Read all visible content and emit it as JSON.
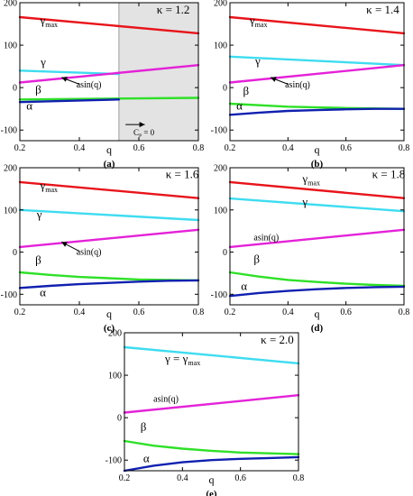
{
  "chart_data": [
    {
      "panel_label": "(a)",
      "kappa_label": "κ = 1.2",
      "type": "line",
      "xlabel": "q",
      "xlim": [
        0.2,
        0.8
      ],
      "ylim": [
        -125,
        200
      ],
      "x_ticks": [
        "0.2",
        "0.4",
        "0.6",
        "0.8"
      ],
      "y_ticks": [
        "-100",
        "0",
        "100",
        "200"
      ],
      "shaded_region": {
        "x_start": 0.533,
        "x_end": 0.8,
        "annotation": "C_P = 0"
      },
      "series": [
        {
          "name": "γmax",
          "color": "#e8141b",
          "x": [
            0.2,
            0.8
          ],
          "y": [
            166,
            128
          ]
        },
        {
          "name": "γ",
          "color": "#3fdcf0",
          "x": [
            0.2,
            0.533
          ],
          "y": [
            40,
            32
          ]
        },
        {
          "name": "asin(q)",
          "color": "#e422d8",
          "x": [
            0.2,
            0.8
          ],
          "y": [
            12,
            53
          ]
        },
        {
          "name": "β",
          "color": "#2fe028",
          "x": [
            0.2,
            0.8
          ],
          "y": [
            -28,
            -24
          ]
        },
        {
          "name": "α",
          "color": "#1020b0",
          "x": [
            0.2,
            0.533
          ],
          "y": [
            -34,
            -28
          ]
        }
      ],
      "labels": [
        {
          "text": "γmax",
          "x": 0.268,
          "y": 149
        },
        {
          "text": "γ",
          "x": 0.27,
          "y": 51
        },
        {
          "text": "asin(q)",
          "x": 0.39,
          "y": 0
        },
        {
          "text": "β",
          "x": 0.252,
          "y": -13
        },
        {
          "text": "α",
          "x": 0.222,
          "y": -52
        },
        {
          "text": "κ = 1.2",
          "x": 0.66,
          "y": 175
        },
        {
          "text": "C_P = 0",
          "x": 0.582,
          "y": -112
        }
      ],
      "arrows": [
        {
          "x1": 0.4,
          "y1": 8,
          "x2": 0.34,
          "y2": 24
        },
        {
          "x1": 0.555,
          "y1": -87,
          "x2": 0.62,
          "y2": -87
        }
      ]
    },
    {
      "panel_label": "(b)",
      "kappa_label": "κ = 1.4",
      "type": "line",
      "xlabel": "q",
      "xlim": [
        0.2,
        0.8
      ],
      "ylim": [
        -125,
        200
      ],
      "x_ticks": [
        "0.2",
        "0.4",
        "0.6",
        "0.8"
      ],
      "y_ticks": [
        "-100",
        "0",
        "100",
        "200"
      ],
      "series": [
        {
          "name": "γmax",
          "color": "#e8141b",
          "x": [
            0.2,
            0.8
          ],
          "y": [
            166,
            128
          ]
        },
        {
          "name": "γ",
          "color": "#3fdcf0",
          "x": [
            0.2,
            0.8
          ],
          "y": [
            73,
            53
          ]
        },
        {
          "name": "asin(q)",
          "color": "#e422d8",
          "x": [
            0.2,
            0.8
          ],
          "y": [
            12,
            53
          ]
        },
        {
          "name": "β",
          "color": "#2fe028",
          "x": [
            0.2,
            0.4,
            0.6,
            0.8
          ],
          "y": [
            -38,
            -45,
            -48,
            -50
          ]
        },
        {
          "name": "α",
          "color": "#1020b0",
          "x": [
            0.2,
            0.3,
            0.4,
            0.5,
            0.6,
            0.7,
            0.8
          ],
          "y": [
            -64,
            -59,
            -55,
            -53,
            -51,
            -50,
            -50
          ]
        }
      ],
      "labels": [
        {
          "text": "γmax",
          "x": 0.268,
          "y": 149
        },
        {
          "text": "γ",
          "x": 0.287,
          "y": 53
        },
        {
          "text": "asin(q)",
          "x": 0.39,
          "y": 0
        },
        {
          "text": "β",
          "x": 0.245,
          "y": -17
        },
        {
          "text": "α",
          "x": 0.222,
          "y": -52
        },
        {
          "text": "κ = 1.4",
          "x": 0.67,
          "y": 175
        }
      ],
      "arrows": [
        {
          "x1": 0.4,
          "y1": 8,
          "x2": 0.34,
          "y2": 24
        }
      ]
    },
    {
      "panel_label": "(c)",
      "kappa_label": "κ = 1.6",
      "type": "line",
      "xlabel": "q",
      "xlim": [
        0.2,
        0.8
      ],
      "ylim": [
        -125,
        200
      ],
      "x_ticks": [
        "0.2",
        "0.4",
        "0.6",
        "0.8"
      ],
      "y_ticks": [
        "-100",
        "0",
        "100",
        "200"
      ],
      "series": [
        {
          "name": "γmax",
          "color": "#e8141b",
          "x": [
            0.2,
            0.8
          ],
          "y": [
            166,
            128
          ]
        },
        {
          "name": "γ",
          "color": "#3fdcf0",
          "x": [
            0.2,
            0.8
          ],
          "y": [
            100,
            76
          ]
        },
        {
          "name": "asin(q)",
          "color": "#e422d8",
          "x": [
            0.2,
            0.8
          ],
          "y": [
            12,
            53
          ]
        },
        {
          "name": "β",
          "color": "#2fe028",
          "x": [
            0.2,
            0.3,
            0.4,
            0.5,
            0.6,
            0.7,
            0.8
          ],
          "y": [
            -48,
            -54,
            -59,
            -62,
            -65,
            -66,
            -67
          ]
        },
        {
          "name": "α",
          "color": "#1020b0",
          "x": [
            0.2,
            0.3,
            0.4,
            0.5,
            0.6,
            0.7,
            0.8
          ],
          "y": [
            -85,
            -80,
            -76,
            -73,
            -70,
            -68,
            -67
          ]
        }
      ],
      "labels": [
        {
          "text": "γmax",
          "x": 0.268,
          "y": 149
        },
        {
          "text": "γ",
          "x": 0.257,
          "y": 80
        },
        {
          "text": "asin(q)",
          "x": 0.39,
          "y": -6
        },
        {
          "text": "β",
          "x": 0.252,
          "y": -28
        },
        {
          "text": "α",
          "x": 0.267,
          "y": -105
        },
        {
          "text": "κ = 1.6",
          "x": 0.69,
          "y": 175
        }
      ],
      "arrows": [
        {
          "x1": 0.4,
          "y1": 2,
          "x2": 0.34,
          "y2": 24
        }
      ]
    },
    {
      "panel_label": "(d)",
      "kappa_label": "κ = 1.8",
      "type": "line",
      "xlabel": "q",
      "xlim": [
        0.2,
        0.8
      ],
      "ylim": [
        -125,
        200
      ],
      "x_ticks": [
        "0.2",
        "0.4",
        "0.6",
        "0.8"
      ],
      "y_ticks": [
        "-100",
        "0",
        "100",
        "200"
      ],
      "series": [
        {
          "name": "γmax",
          "color": "#e8141b",
          "x": [
            0.2,
            0.8
          ],
          "y": [
            166,
            128
          ]
        },
        {
          "name": "γ",
          "color": "#3fdcf0",
          "x": [
            0.2,
            0.8
          ],
          "y": [
            127,
            97
          ]
        },
        {
          "name": "asin(q)",
          "color": "#e422d8",
          "x": [
            0.2,
            0.8
          ],
          "y": [
            12,
            53
          ]
        },
        {
          "name": "β",
          "color": "#2fe028",
          "x": [
            0.2,
            0.3,
            0.4,
            0.5,
            0.6,
            0.7,
            0.8
          ],
          "y": [
            -48,
            -58,
            -66,
            -71,
            -75,
            -78,
            -80
          ]
        },
        {
          "name": "α",
          "color": "#1020b0",
          "x": [
            0.2,
            0.3,
            0.4,
            0.5,
            0.6,
            0.7,
            0.8
          ],
          "y": [
            -104,
            -97,
            -92,
            -88,
            -85,
            -83,
            -82
          ]
        }
      ],
      "labels": [
        {
          "text": "γmax",
          "x": 0.45,
          "y": 165
        },
        {
          "text": "γ",
          "x": 0.45,
          "y": 110
        },
        {
          "text": "asin(q)",
          "x": 0.282,
          "y": 28
        },
        {
          "text": "β",
          "x": 0.282,
          "y": -26
        },
        {
          "text": "α",
          "x": 0.238,
          "y": -90
        },
        {
          "text": "κ = 1.8",
          "x": 0.69,
          "y": 175
        }
      ],
      "arrows": []
    },
    {
      "panel_label": "(e)",
      "kappa_label": "κ = 2.0",
      "type": "line",
      "xlabel": "q",
      "xlim": [
        0.2,
        0.8
      ],
      "ylim": [
        -125,
        200
      ],
      "x_ticks": [
        "0.2",
        "0.4",
        "0.6",
        "0.8"
      ],
      "y_ticks": [
        "-100",
        "0",
        "100",
        "200"
      ],
      "series": [
        {
          "name": "γ = γmax",
          "color": "#3fdcf0",
          "x": [
            0.2,
            0.8
          ],
          "y": [
            166,
            128
          ]
        },
        {
          "name": "asin(q)",
          "color": "#e422d8",
          "x": [
            0.2,
            0.8
          ],
          "y": [
            12,
            53
          ]
        },
        {
          "name": "β",
          "color": "#2fe028",
          "x": [
            0.2,
            0.3,
            0.4,
            0.5,
            0.6,
            0.7,
            0.8
          ],
          "y": [
            -55,
            -66,
            -73,
            -78,
            -82,
            -84,
            -86
          ]
        },
        {
          "name": "α",
          "color": "#1020b0",
          "x": [
            0.2,
            0.3,
            0.4,
            0.5,
            0.6,
            0.7,
            0.8
          ],
          "y": [
            -125,
            -113,
            -105,
            -100,
            -97,
            -95,
            -93
          ]
        }
      ],
      "labels": [
        {
          "text": "γ = γmax",
          "x": 0.34,
          "y": 130
        },
        {
          "text": "asin(q)",
          "x": 0.3,
          "y": 38
        },
        {
          "text": "β",
          "x": 0.255,
          "y": -31
        },
        {
          "text": "α",
          "x": 0.265,
          "y": -105
        },
        {
          "text": "κ = 2.0",
          "x": 0.67,
          "y": 175
        }
      ],
      "arrows": []
    }
  ]
}
